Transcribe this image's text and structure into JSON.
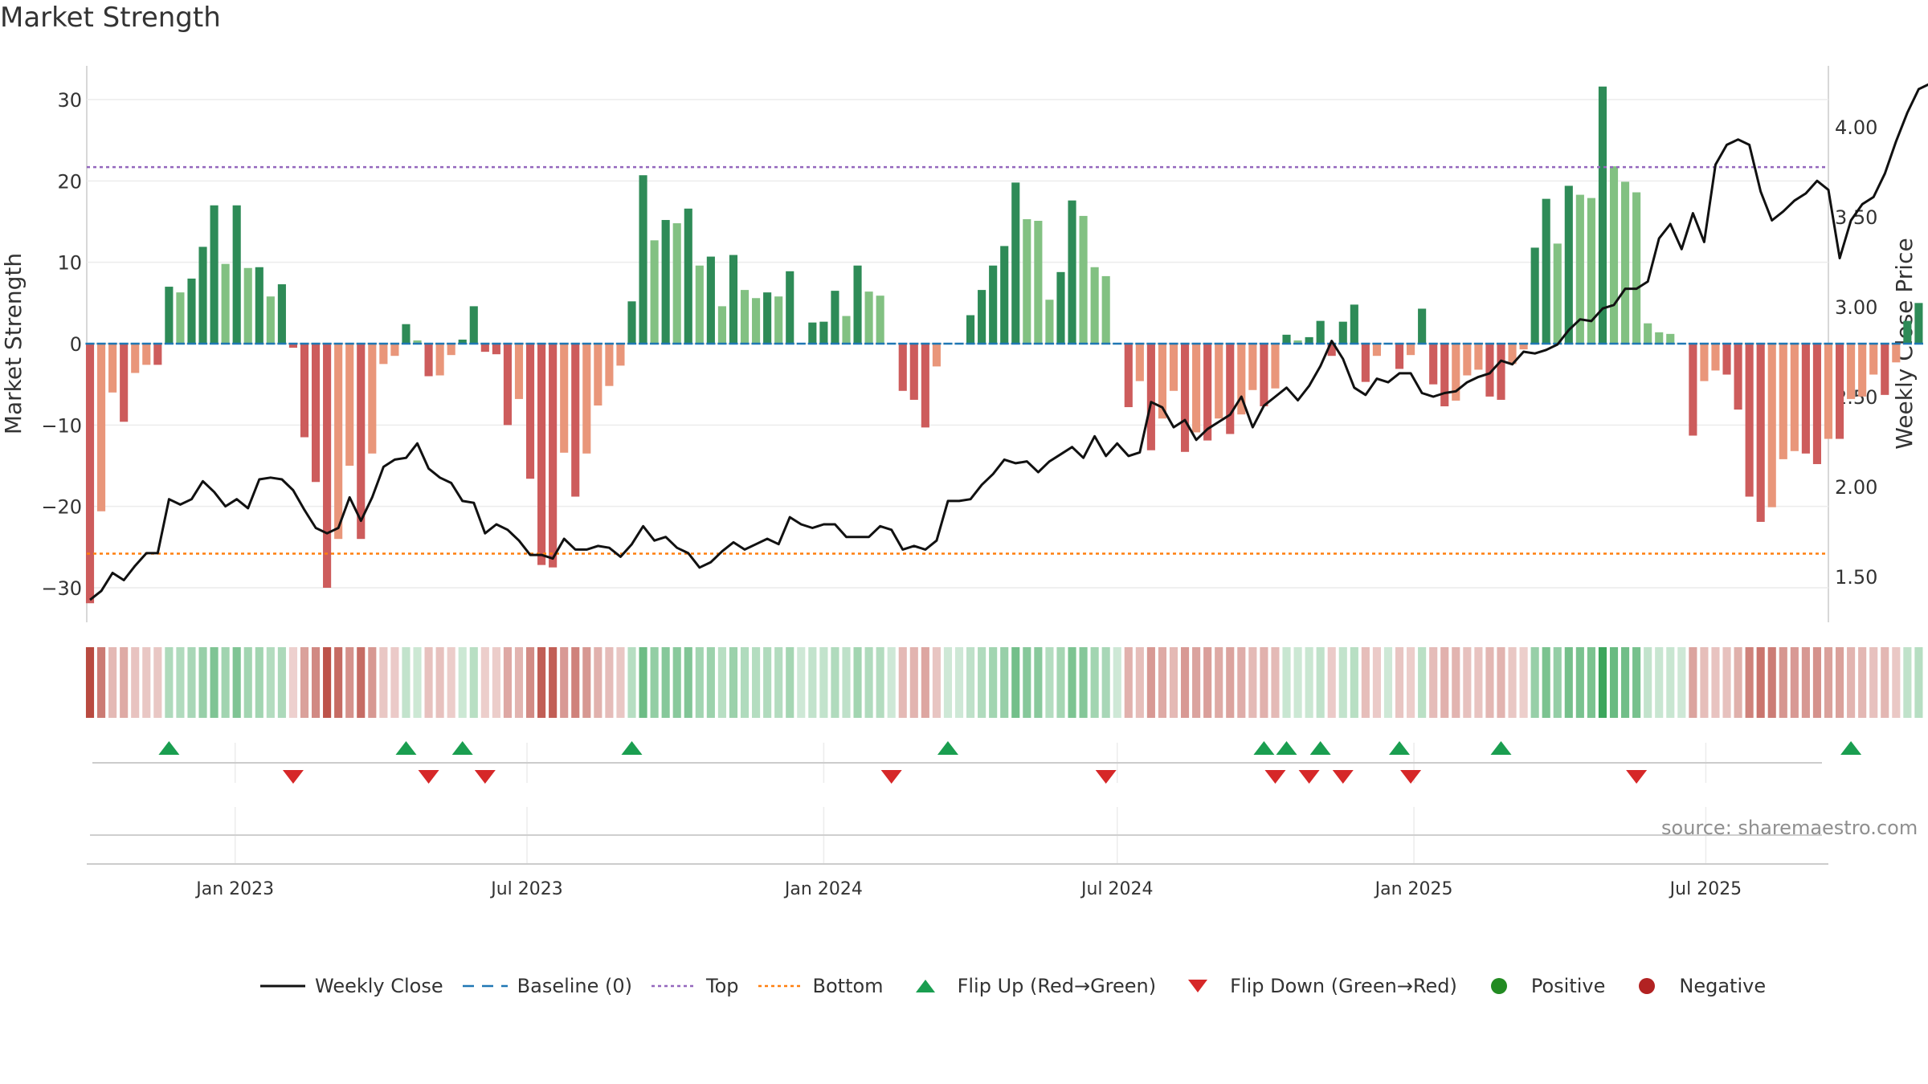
{
  "colors": {
    "strong_green": "#2e8b57",
    "light_green": "#82c182",
    "strong_red": "#cd5c5c",
    "light_red": "#e9967a",
    "baseline": "#1f77b4",
    "top": "#9467bd",
    "bottom": "#ff7f0e",
    "price": "#111111",
    "flip_up": "#1a9e50",
    "flip_down": "#d62728",
    "positive": "#228b22",
    "negative": "#b22222"
  },
  "chart_data": {
    "title": "Market Strength",
    "source": "source: sharemaestro.com",
    "type": "bar",
    "x_start": "2022-10-03",
    "x_step_days": 7,
    "x_range": [
      "2022-10-01",
      "2025-09-15"
    ],
    "x_ticks": [
      "Jan 2023",
      "Jul 2023",
      "Jan 2024",
      "Jul 2024",
      "Jan 2025",
      "Jul 2025"
    ],
    "y_left": {
      "label": "Market Strength",
      "ticks": [
        "30",
        "20",
        "10",
        "0",
        "−10",
        "−20",
        "−30"
      ],
      "ylim": [
        -34,
        35
      ]
    },
    "y_right": {
      "label": "Weekly Close Price",
      "ticks": [
        "4.00",
        "3.50",
        "3.00",
        "2.50",
        "2.00",
        "1.50"
      ],
      "ylim": [
        1.22,
        4.49
      ]
    },
    "levels": {
      "top": 21.7,
      "bottom": -25.8,
      "baseline": 0
    },
    "strength": [
      -31.9,
      -20.6,
      -6,
      -9.6,
      -3.6,
      -2.6,
      -2.6,
      7,
      6.3,
      8,
      11.9,
      17,
      9.8,
      17,
      9.3,
      9.4,
      5.8,
      7.3,
      -0.5,
      -11.5,
      -17,
      -30,
      -24,
      -15,
      -24,
      -13.5,
      -2.5,
      -1.5,
      2.4,
      0.4,
      -4,
      -3.9,
      -1.4,
      0.5,
      4.6,
      -1,
      -1.3,
      -10,
      -6.8,
      -16.6,
      -27.2,
      -27.5,
      -13.4,
      -18.8,
      -13.5,
      -7.6,
      -5.2,
      -2.7,
      5.2,
      20.7,
      12.7,
      15.2,
      14.8,
      16.6,
      9.6,
      10.7,
      4.6,
      10.9,
      6.6,
      5.6,
      6.3,
      5.8,
      8.9,
      0,
      2.6,
      2.7,
      6.5,
      3.4,
      9.6,
      6.4,
      5.9,
      0,
      -5.8,
      -6.9,
      -10.3,
      -2.8,
      0,
      0,
      3.5,
      6.6,
      9.6,
      12,
      19.8,
      15.3,
      15.1,
      5.4,
      8.8,
      17.6,
      15.7,
      9.4,
      8.3,
      0,
      -7.8,
      -4.6,
      -13.1,
      -9.2,
      -5.8,
      -13.3,
      -10.9,
      -11.9,
      -9.2,
      -11.1,
      -8.7,
      -5.7,
      -7.7,
      -5.5,
      1.1,
      0.4,
      0.8,
      2.8,
      -1.5,
      2.7,
      4.8,
      -4.7,
      -1.5,
      0,
      -3.1,
      -1.4,
      4.3,
      -5,
      -7.7,
      -7,
      -3.9,
      -3.2,
      -6.5,
      -6.9,
      -2.5,
      -0.7,
      11.8,
      17.8,
      12.3,
      19.4,
      18.3,
      17.9,
      31.6,
      21.8,
      19.9,
      18.6,
      2.5,
      1.4,
      1.2,
      0,
      -11.3,
      -4.6,
      -3.3,
      -3.8,
      -8.1,
      -18.8,
      -21.9,
      -20.1,
      -14.2,
      -13.2,
      -13.5,
      -14.8,
      -11.7,
      -11.7,
      -6.8,
      -6.5,
      -3.8,
      -6.3,
      -2.3,
      2.8,
      5
    ],
    "close": [
      1.37,
      1.42,
      1.52,
      1.48,
      1.56,
      1.63,
      1.63,
      1.93,
      1.9,
      1.93,
      2.03,
      1.97,
      1.89,
      1.93,
      1.88,
      2.04,
      2.05,
      2.04,
      1.98,
      1.87,
      1.77,
      1.74,
      1.77,
      1.94,
      1.81,
      1.94,
      2.11,
      2.15,
      2.16,
      2.24,
      2.1,
      2.05,
      2.02,
      1.92,
      1.91,
      1.74,
      1.79,
      1.76,
      1.7,
      1.62,
      1.62,
      1.6,
      1.71,
      1.65,
      1.65,
      1.67,
      1.66,
      1.61,
      1.68,
      1.78,
      1.7,
      1.72,
      1.66,
      1.63,
      1.55,
      1.58,
      1.64,
      1.69,
      1.65,
      1.68,
      1.71,
      1.68,
      1.83,
      1.79,
      1.77,
      1.79,
      1.79,
      1.72,
      1.72,
      1.72,
      1.78,
      1.76,
      1.65,
      1.67,
      1.65,
      1.7,
      1.92,
      1.92,
      1.93,
      2.01,
      2.07,
      2.15,
      2.13,
      2.14,
      2.08,
      2.14,
      2.18,
      2.22,
      2.16,
      2.28,
      2.17,
      2.24,
      2.17,
      2.19,
      2.47,
      2.44,
      2.33,
      2.37,
      2.26,
      2.32,
      2.36,
      2.4,
      2.5,
      2.33,
      2.45,
      2.5,
      2.55,
      2.48,
      2.56,
      2.67,
      2.81,
      2.71,
      2.55,
      2.51,
      2.6,
      2.58,
      2.63,
      2.63,
      2.52,
      2.5,
      2.52,
      2.53,
      2.58,
      2.61,
      2.63,
      2.7,
      2.68,
      2.75,
      2.74,
      2.76,
      2.79,
      2.87,
      2.93,
      2.92,
      2.99,
      3.01,
      3.1,
      3.1,
      3.14,
      3.38,
      3.46,
      3.32,
      3.52,
      3.36,
      3.79,
      3.9,
      3.93,
      3.9,
      3.64,
      3.48,
      3.53,
      3.59,
      3.63,
      3.7,
      3.65,
      3.27,
      3.48,
      3.57,
      3.61,
      3.74,
      3.92,
      4.08,
      4.21,
      4.24
    ],
    "flips_up": [
      7,
      28,
      33,
      48,
      76,
      104,
      106,
      109,
      116,
      125,
      156
    ],
    "flips_down": [
      18,
      30,
      35,
      71,
      90,
      105,
      108,
      111,
      117,
      137
    ],
    "legend": [
      {
        "key": "close",
        "label": "Weekly Close"
      },
      {
        "key": "baseline",
        "label": "Baseline (0)"
      },
      {
        "key": "top",
        "label": "Top"
      },
      {
        "key": "bottom",
        "label": "Bottom"
      },
      {
        "key": "flip_up",
        "label": "Flip Up (Red→Green)"
      },
      {
        "key": "flip_down",
        "label": "Flip Down (Green→Red)"
      },
      {
        "key": "positive",
        "label": "Positive"
      },
      {
        "key": "negative",
        "label": "Negative"
      }
    ]
  }
}
